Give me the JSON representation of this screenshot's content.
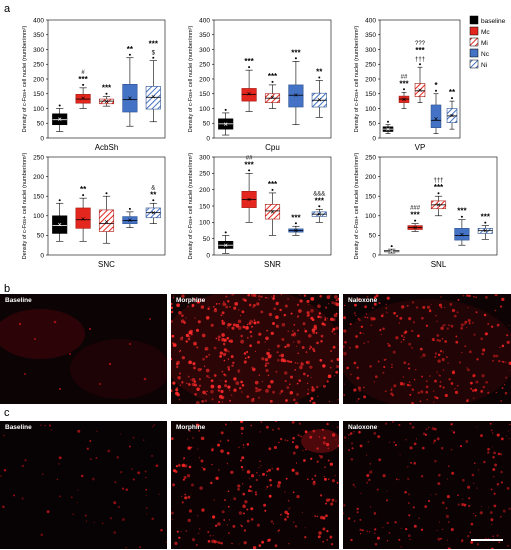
{
  "panel_labels": {
    "a": "a",
    "b": "b",
    "c": "c"
  },
  "chart_data": [
    {
      "type": "box",
      "region": "AcbSh",
      "ylabel": "Density of c-Fos+ cell nuclei (number/mm²)",
      "ylim": [
        0,
        400
      ],
      "yticks": [
        "0",
        "50",
        "100",
        "150",
        "200",
        "250",
        "300",
        "350",
        "400"
      ],
      "groups": [
        {
          "group": "baseline",
          "min": 22,
          "q1": 45,
          "median": 62,
          "q3": 82,
          "max": 100,
          "mean": 64,
          "sig": []
        },
        {
          "group": "Mc",
          "min": 100,
          "q1": 118,
          "median": 132,
          "q3": 148,
          "max": 170,
          "mean": 135,
          "sig": [
            "#",
            "***"
          ]
        },
        {
          "group": "Mi",
          "min": 108,
          "q1": 116,
          "median": 125,
          "q3": 132,
          "max": 140,
          "mean": 124,
          "sig": [
            "***"
          ]
        },
        {
          "group": "Nc",
          "min": 40,
          "q1": 88,
          "median": 130,
          "q3": 182,
          "max": 272,
          "mean": 135,
          "sig": [
            "**"
          ]
        },
        {
          "group": "Ni",
          "min": 55,
          "q1": 98,
          "median": 138,
          "q3": 175,
          "max": 262,
          "mean": 140,
          "sig": [
            "***",
            "$"
          ]
        }
      ]
    },
    {
      "type": "box",
      "region": "Cpu",
      "ylabel": "Density of c-Fos+ cell nuclei (number/mm²)",
      "ylim": [
        0,
        400
      ],
      "yticks": [
        "0",
        "50",
        "100",
        "150",
        "200",
        "250",
        "300",
        "350",
        "400"
      ],
      "groups": [
        {
          "group": "baseline",
          "min": 10,
          "q1": 30,
          "median": 48,
          "q3": 65,
          "max": 85,
          "mean": 47,
          "sig": []
        },
        {
          "group": "Mc",
          "min": 90,
          "q1": 125,
          "median": 148,
          "q3": 168,
          "max": 230,
          "mean": 150,
          "sig": [
            "***"
          ]
        },
        {
          "group": "Mi",
          "min": 100,
          "q1": 120,
          "median": 135,
          "q3": 150,
          "max": 180,
          "mean": 138,
          "sig": [
            "***"
          ]
        },
        {
          "group": "Nc",
          "min": 45,
          "q1": 105,
          "median": 145,
          "q3": 180,
          "max": 260,
          "mean": 146,
          "sig": [
            "***"
          ]
        },
        {
          "group": "Ni",
          "min": 70,
          "q1": 105,
          "median": 128,
          "q3": 152,
          "max": 195,
          "mean": 130,
          "sig": [
            "**"
          ]
        }
      ]
    },
    {
      "type": "box",
      "region": "VP",
      "ylabel": "Density of c-Fos+ cell nuclei (number/mm²)",
      "ylim": [
        0,
        400
      ],
      "yticks": [
        "0",
        "50",
        "100",
        "150",
        "200",
        "250",
        "300",
        "350",
        "400"
      ],
      "groups": [
        {
          "group": "baseline",
          "min": 15,
          "q1": 22,
          "median": 30,
          "q3": 38,
          "max": 45,
          "mean": 30,
          "sig": []
        },
        {
          "group": "Mc",
          "min": 100,
          "q1": 120,
          "median": 132,
          "q3": 142,
          "max": 155,
          "mean": 131,
          "sig": [
            "##",
            "***"
          ]
        },
        {
          "group": "Mi",
          "min": 120,
          "q1": 140,
          "median": 160,
          "q3": 185,
          "max": 240,
          "mean": 162,
          "sig": [
            "???",
            "***",
            "†††"
          ]
        },
        {
          "group": "Nc",
          "min": 15,
          "q1": 35,
          "median": 60,
          "q3": 112,
          "max": 150,
          "mean": 65,
          "sig": [
            "*"
          ]
        },
        {
          "group": "Ni",
          "min": 30,
          "q1": 52,
          "median": 75,
          "q3": 100,
          "max": 125,
          "mean": 76,
          "sig": [
            "**"
          ]
        }
      ]
    },
    {
      "type": "box",
      "region": "SNC",
      "ylabel": "Density of c-Fos+ cell nuclei (number/mm²)",
      "ylim": [
        0,
        250
      ],
      "yticks": [
        "0",
        "50",
        "100",
        "150",
        "200",
        "250"
      ],
      "groups": [
        {
          "group": "baseline",
          "min": 35,
          "q1": 55,
          "median": 75,
          "q3": 100,
          "max": 132,
          "mean": 78,
          "sig": []
        },
        {
          "group": "Mc",
          "min": 35,
          "q1": 68,
          "median": 90,
          "q3": 120,
          "max": 145,
          "mean": 92,
          "sig": [
            "**"
          ]
        },
        {
          "group": "Mi",
          "min": 30,
          "q1": 60,
          "median": 80,
          "q3": 115,
          "max": 150,
          "mean": 85,
          "sig": []
        },
        {
          "group": "Nc",
          "min": 70,
          "q1": 80,
          "median": 88,
          "q3": 98,
          "max": 110,
          "mean": 89,
          "sig": []
        },
        {
          "group": "Ni",
          "min": 80,
          "q1": 95,
          "median": 108,
          "q3": 120,
          "max": 132,
          "mean": 108,
          "sig": [
            "&",
            "**"
          ]
        }
      ]
    },
    {
      "type": "box",
      "region": "SNR",
      "ylabel": "Density of c-Fos+ cell nuclei (number/mm²)",
      "ylim": [
        0,
        300
      ],
      "yticks": [
        "0",
        "50",
        "100",
        "150",
        "200",
        "250",
        "300"
      ],
      "groups": [
        {
          "group": "baseline",
          "min": 5,
          "q1": 20,
          "median": 30,
          "q3": 42,
          "max": 60,
          "mean": 30,
          "sig": []
        },
        {
          "group": "Mc",
          "min": 100,
          "q1": 145,
          "median": 170,
          "q3": 195,
          "max": 250,
          "mean": 170,
          "sig": [
            "##",
            "***"
          ]
        },
        {
          "group": "Mi",
          "min": 60,
          "q1": 110,
          "median": 135,
          "q3": 155,
          "max": 190,
          "mean": 132,
          "sig": [
            "***"
          ]
        },
        {
          "group": "Nc",
          "min": 60,
          "q1": 70,
          "median": 75,
          "q3": 80,
          "max": 88,
          "mean": 75,
          "sig": [
            "***"
          ]
        },
        {
          "group": "Ni",
          "min": 100,
          "q1": 118,
          "median": 125,
          "q3": 132,
          "max": 140,
          "mean": 125,
          "sig": [
            "&&&",
            "***"
          ]
        }
      ]
    },
    {
      "type": "box",
      "region": "SNL",
      "ylabel": "Density of c-Fos+ cell nuclei (number/mm²)",
      "ylim": [
        0,
        250
      ],
      "yticks": [
        "0",
        "50",
        "100",
        "150",
        "200",
        "250"
      ],
      "groups": [
        {
          "group": "baseline",
          "min": 5,
          "q1": 8,
          "median": 10,
          "q3": 12,
          "max": 15,
          "mean": 10,
          "sig": []
        },
        {
          "group": "Mc",
          "min": 60,
          "q1": 65,
          "median": 70,
          "q3": 75,
          "max": 80,
          "mean": 70,
          "sig": [
            "###",
            "***"
          ]
        },
        {
          "group": "Mi",
          "min": 100,
          "q1": 118,
          "median": 128,
          "q3": 138,
          "max": 150,
          "mean": 128,
          "sig": [
            "†††",
            "***"
          ]
        },
        {
          "group": "Nc",
          "min": 25,
          "q1": 38,
          "median": 50,
          "q3": 68,
          "max": 90,
          "mean": 52,
          "sig": [
            "***"
          ]
        },
        {
          "group": "Ni",
          "min": 40,
          "q1": 55,
          "median": 62,
          "q3": 68,
          "max": 75,
          "mean": 62,
          "sig": [
            "***"
          ]
        }
      ]
    }
  ],
  "legend": [
    {
      "label": "baseline",
      "color": "#000000",
      "pattern": "solid"
    },
    {
      "label": "Mc",
      "color": "#e3271e",
      "pattern": "solid"
    },
    {
      "label": "Mi",
      "color": "#e3271e",
      "pattern": "hatch"
    },
    {
      "label": "Nc",
      "color": "#4472c4",
      "pattern": "solid"
    },
    {
      "label": "Ni",
      "color": "#4472c4",
      "pattern": "hatch"
    }
  ],
  "colors": {
    "baseline": "#000000",
    "morphine": "#e3271e",
    "naloxone": "#4472c4"
  },
  "micrographs": {
    "row_b": [
      "Baseline",
      "Morphine",
      "Naloxone"
    ],
    "row_c": [
      "Baseline",
      "Morphine",
      "Naloxone"
    ]
  }
}
